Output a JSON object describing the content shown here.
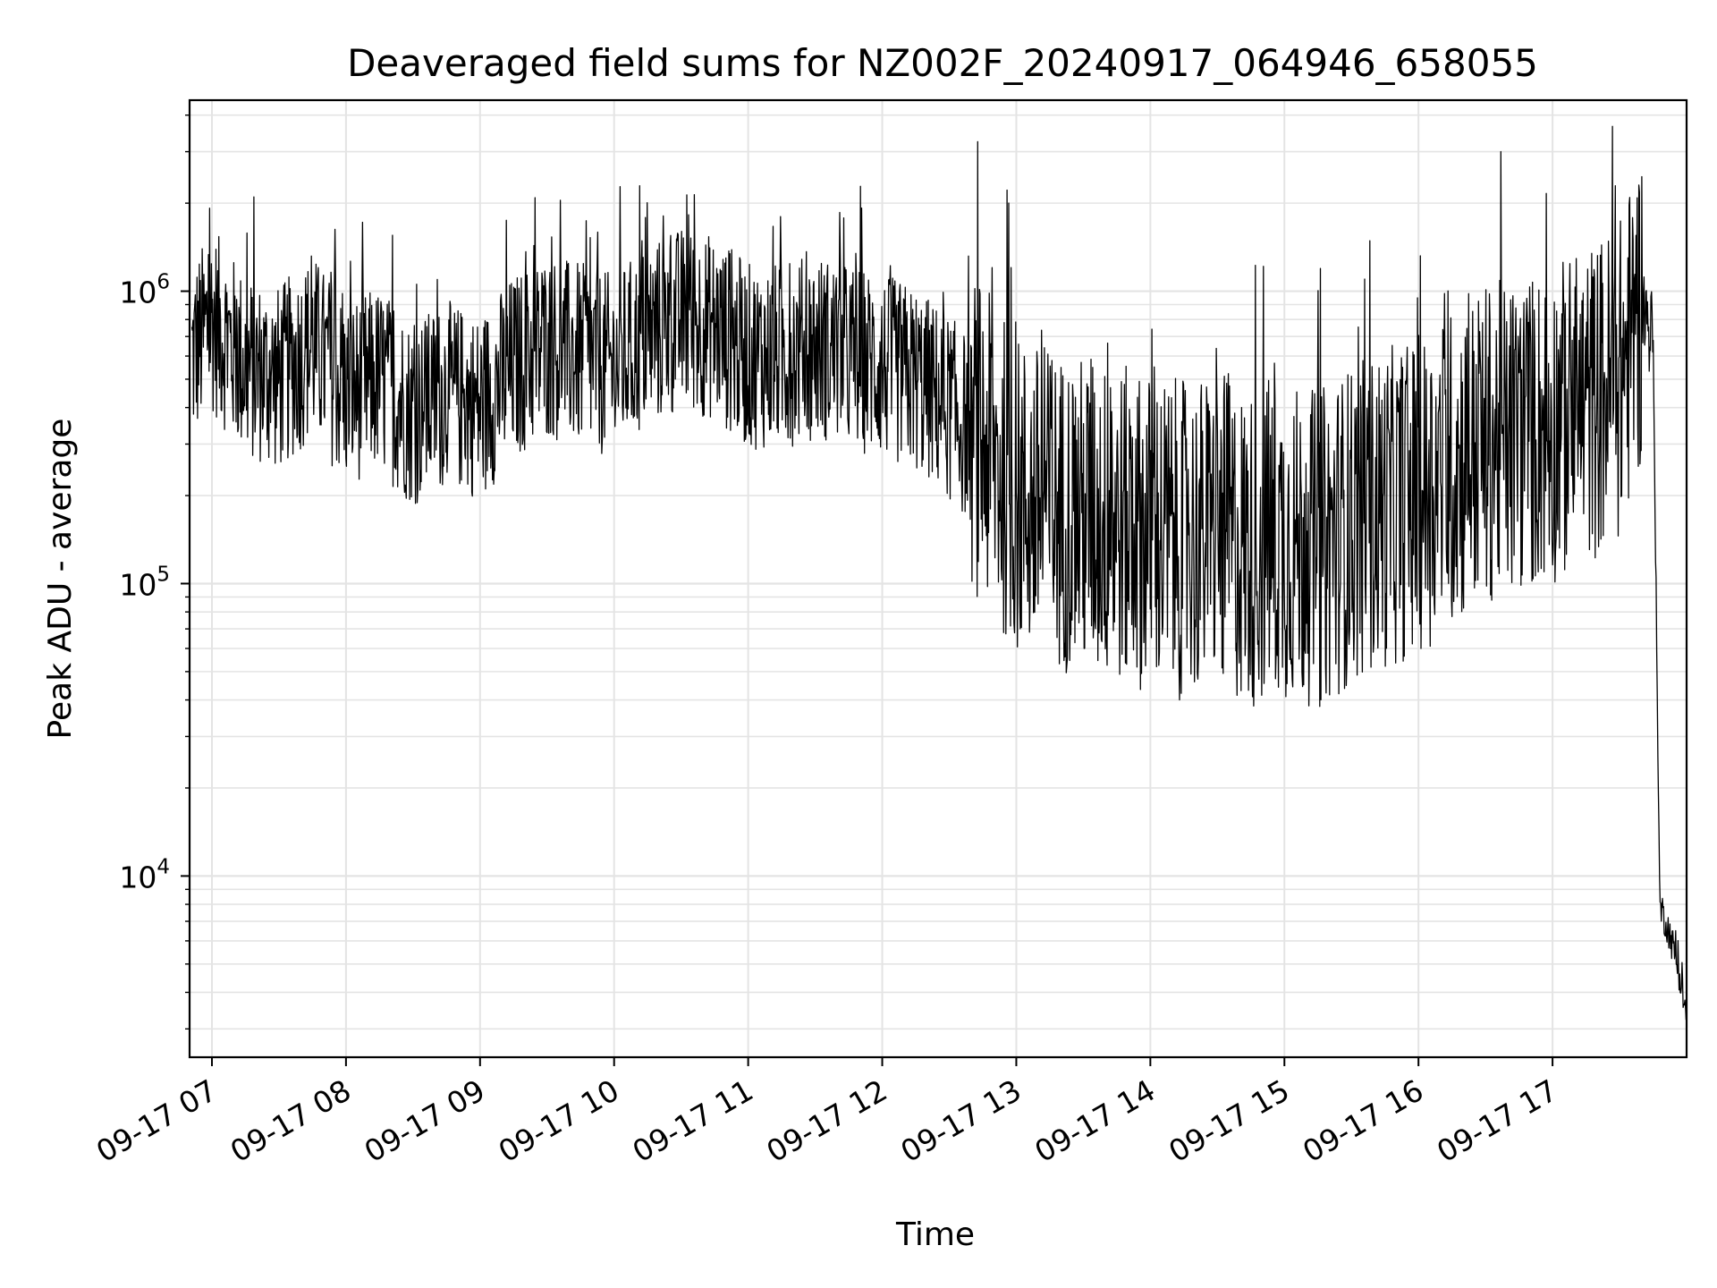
{
  "chart_data": {
    "type": "line",
    "title": "Deaveraged field sums for NZ002F_20240917_064946_658055",
    "xlabel": "Time",
    "ylabel": "Peak ADU - average",
    "yscale": "log",
    "ylim": [
      2400,
      4500000
    ],
    "xlim": [
      "2024-09-17 06:50",
      "2024-09-17 18:00"
    ],
    "x_ticks": [
      "09-17 07",
      "09-17 08",
      "09-17 09",
      "09-17 10",
      "09-17 11",
      "09-17 12",
      "09-17 13",
      "09-17 14",
      "09-17 15",
      "09-17 16",
      "09-17 17"
    ],
    "y_ticks": [
      {
        "value": 10000,
        "base": "10",
        "exp": "4"
      },
      {
        "value": 100000,
        "base": "10",
        "exp": "5"
      },
      {
        "value": 1000000,
        "base": "10",
        "exp": "6"
      }
    ],
    "grid": true,
    "line_color": "#000000",
    "series": [
      {
        "x": [
          "2024-09-17 06:51",
          "2024-09-17 07:00",
          "2024-09-17 07:15",
          "2024-09-17 07:30",
          "2024-09-17 07:45",
          "2024-09-17 08:00",
          "2024-09-17 08:15",
          "2024-09-17 08:30",
          "2024-09-17 08:45",
          "2024-09-17 09:00",
          "2024-09-17 09:15",
          "2024-09-17 09:30",
          "2024-09-17 09:45",
          "2024-09-17 10:00",
          "2024-09-17 10:15",
          "2024-09-17 10:30",
          "2024-09-17 10:45",
          "2024-09-17 11:00",
          "2024-09-17 11:15",
          "2024-09-17 11:30",
          "2024-09-17 11:45",
          "2024-09-17 12:00",
          "2024-09-17 12:15",
          "2024-09-17 12:30",
          "2024-09-17 12:45",
          "2024-09-17 13:00",
          "2024-09-17 13:15",
          "2024-09-17 13:30",
          "2024-09-17 13:45",
          "2024-09-17 14:00",
          "2024-09-17 14:15",
          "2024-09-17 14:30",
          "2024-09-17 14:45",
          "2024-09-17 15:00",
          "2024-09-17 15:15",
          "2024-09-17 15:30",
          "2024-09-17 15:45",
          "2024-09-17 16:00",
          "2024-09-17 16:15",
          "2024-09-17 16:30",
          "2024-09-17 16:45",
          "2024-09-17 17:00",
          "2024-09-17 17:15",
          "2024-09-17 17:30",
          "2024-09-17 17:40",
          "2024-09-17 17:45",
          "2024-09-17 17:48",
          "2024-09-17 17:52",
          "2024-09-17 17:56",
          "2024-09-17 18:00"
        ],
        "y": [
          600000,
          800000,
          550000,
          500000,
          650000,
          450000,
          500000,
          380000,
          450000,
          400000,
          550000,
          650000,
          600000,
          550000,
          700000,
          800000,
          750000,
          600000,
          600000,
          650000,
          600000,
          550000,
          500000,
          400000,
          300000,
          200000,
          180000,
          170000,
          160000,
          150000,
          140000,
          150000,
          130000,
          140000,
          130000,
          160000,
          180000,
          200000,
          250000,
          300000,
          320000,
          350000,
          400000,
          500000,
          900000,
          700000,
          8000,
          6500,
          5000,
          3300
        ]
      }
    ]
  }
}
